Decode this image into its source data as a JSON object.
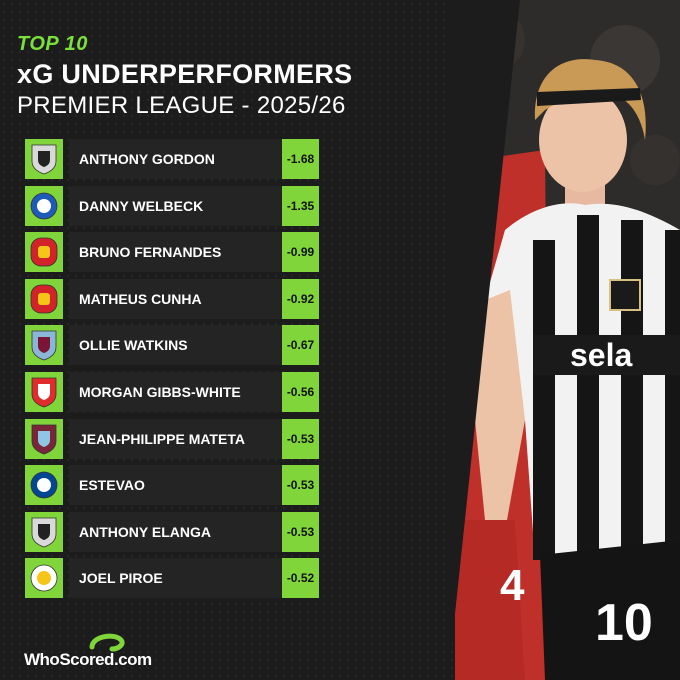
{
  "header": {
    "top_label": "TOP 10",
    "title": "xG UNDERPERFORMERS",
    "subtitle": "PREMIER LEAGUE - 2025/26"
  },
  "colors": {
    "accent": "#7fd53a",
    "background": "#1c1c1c",
    "row_bg": "#242424"
  },
  "players": [
    {
      "name": "ANTHONY GORDON",
      "value": "-1.68",
      "crest": "newcastle-crest-icon"
    },
    {
      "name": "DANNY WELBECK",
      "value": "-1.35",
      "crest": "brighton-crest-icon"
    },
    {
      "name": "BRUNO FERNANDES",
      "value": "-0.99",
      "crest": "man-utd-crest-icon"
    },
    {
      "name": "MATHEUS CUNHA",
      "value": "-0.92",
      "crest": "man-utd-crest-icon"
    },
    {
      "name": "OLLIE WATKINS",
      "value": "-0.67",
      "crest": "aston-villa-crest-icon"
    },
    {
      "name": "MORGAN GIBBS-WHITE",
      "value": "-0.56",
      "crest": "nottingham-forest-crest-icon"
    },
    {
      "name": "JEAN-PHILIPPE MATETA",
      "value": "-0.53",
      "crest": "west-ham-crest-icon"
    },
    {
      "name": "ESTEVAO",
      "value": "-0.53",
      "crest": "chelsea-crest-icon"
    },
    {
      "name": "ANTHONY ELANGA",
      "value": "-0.53",
      "crest": "newcastle-crest-icon"
    },
    {
      "name": "JOEL PIROE",
      "value": "-0.52",
      "crest": "leeds-crest-icon"
    }
  ],
  "photo": {
    "shirt_sponsor": "sela",
    "shirt_number": "10",
    "opponent_number": "4"
  },
  "footer": {
    "logo_text": "WhoScored",
    "logo_suffix": ".com"
  }
}
